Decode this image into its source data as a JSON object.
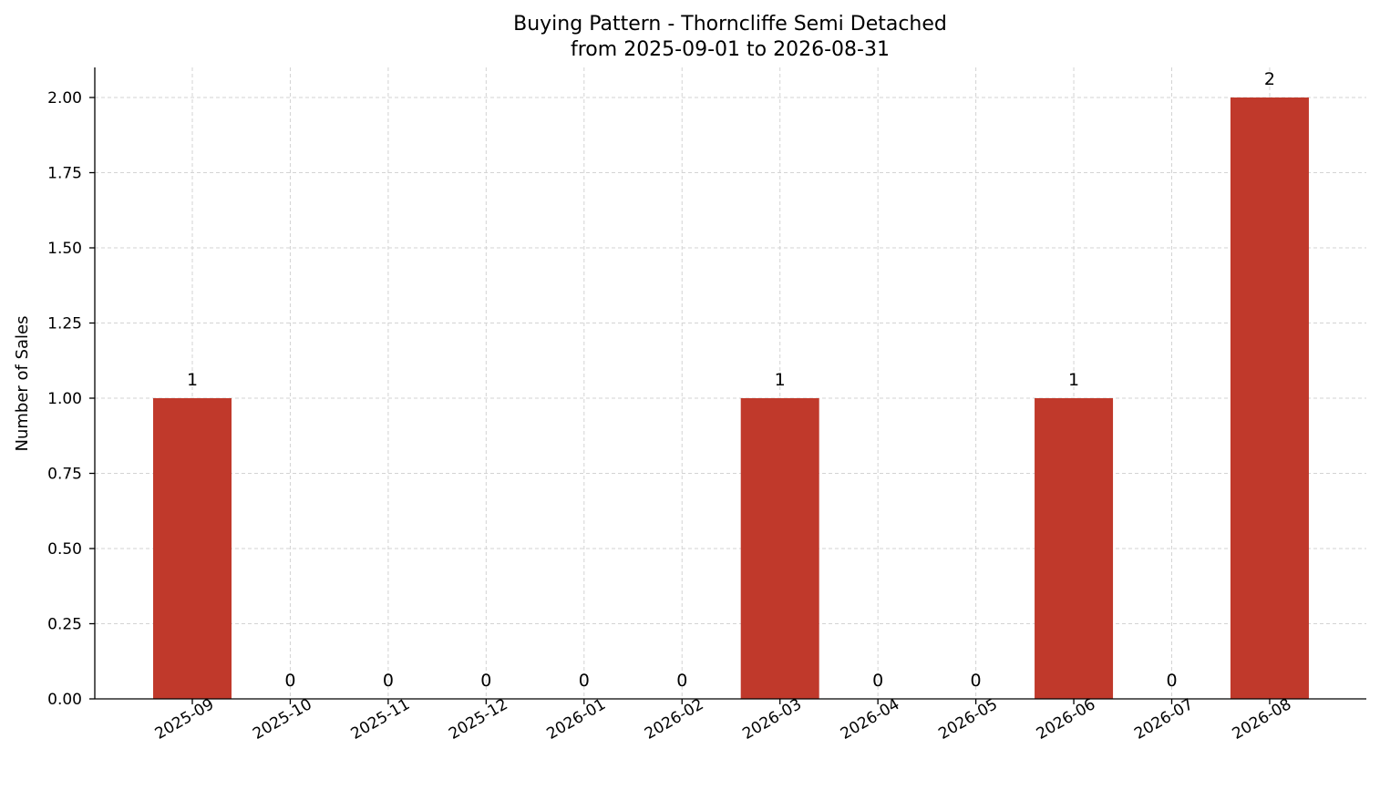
{
  "chart_data": {
    "type": "bar",
    "title": "Buying Pattern - Thorncliffe Semi Detached",
    "subtitle": "from 2025-09-01 to 2026-08-31",
    "xlabel": "",
    "ylabel": "Number of Sales",
    "categories": [
      "2025-09",
      "2025-10",
      "2025-11",
      "2025-12",
      "2026-01",
      "2026-02",
      "2026-03",
      "2026-04",
      "2026-05",
      "2026-06",
      "2026-07",
      "2026-08"
    ],
    "values": [
      1,
      0,
      0,
      0,
      0,
      0,
      1,
      0,
      0,
      1,
      0,
      2
    ],
    "data_labels": [
      "1",
      "0",
      "0",
      "0",
      "0",
      "0",
      "1",
      "0",
      "0",
      "1",
      "0",
      "2"
    ],
    "ylim": [
      0,
      2.1
    ],
    "yticks": [
      0,
      0.25,
      0.5,
      0.75,
      1.0,
      1.25,
      1.5,
      1.75,
      2.0
    ],
    "ytick_labels": [
      "0.00",
      "0.25",
      "0.50",
      "0.75",
      "1.00",
      "1.25",
      "1.50",
      "1.75",
      "2.00"
    ],
    "grid": true,
    "bar_color": "#c0392b",
    "grid_color": "#d3d3d3",
    "legend": "none"
  }
}
